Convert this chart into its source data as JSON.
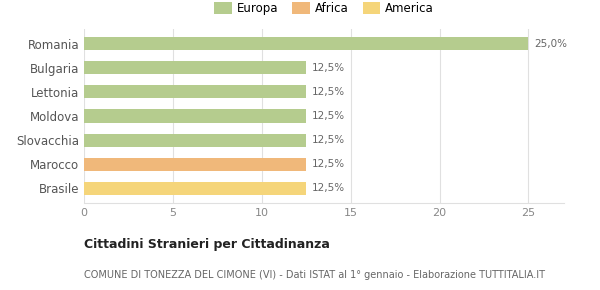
{
  "categories": [
    "Brasile",
    "Marocco",
    "Slovacchia",
    "Moldova",
    "Lettonia",
    "Bulgaria",
    "Romania"
  ],
  "values": [
    12.5,
    12.5,
    12.5,
    12.5,
    12.5,
    12.5,
    25.0
  ],
  "colors": [
    "#f5d57a",
    "#f0b87a",
    "#b5cc8e",
    "#b5cc8e",
    "#b5cc8e",
    "#b5cc8e",
    "#b5cc8e"
  ],
  "labels": [
    "12,5%",
    "12,5%",
    "12,5%",
    "12,5%",
    "12,5%",
    "12,5%",
    "25,0%"
  ],
  "legend": [
    {
      "label": "Europa",
      "color": "#b5cc8e"
    },
    {
      "label": "Africa",
      "color": "#f0b87a"
    },
    {
      "label": "America",
      "color": "#f5d57a"
    }
  ],
  "xlim": [
    0,
    27
  ],
  "xticks": [
    0,
    5,
    10,
    15,
    20,
    25
  ],
  "title": "Cittadini Stranieri per Cittadinanza",
  "subtitle": "COMUNE DI TONEZZA DEL CIMONE (VI) - Dati ISTAT al 1° gennaio - Elaborazione TUTTITALIA.IT",
  "background_color": "#ffffff",
  "bar_height": 0.55,
  "label_fontsize": 7.5,
  "grid_color": "#e0e0e0",
  "ytick_fontsize": 8.5,
  "xtick_fontsize": 8,
  "legend_fontsize": 8.5,
  "title_fontsize": 9,
  "subtitle_fontsize": 7
}
